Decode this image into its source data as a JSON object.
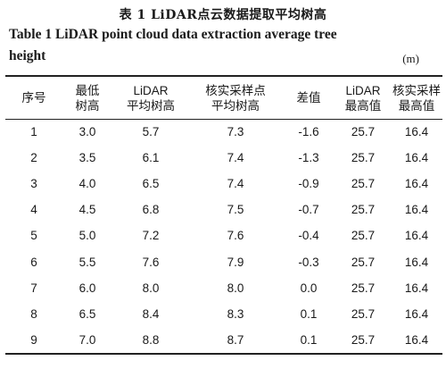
{
  "title_cn": "表 1    LiDAR点云数据提取平均树高",
  "title_en_line1": "Table 1    LiDAR point cloud data extraction average tree",
  "title_en_line2": "height",
  "unit": "(m)",
  "columns": [
    [
      "序号"
    ],
    [
      "最低",
      "树高"
    ],
    [
      "LiDAR",
      "平均树高"
    ],
    [
      "核实采样点",
      "平均树高"
    ],
    [
      "差值"
    ],
    [
      "LiDAR",
      "最高值"
    ],
    [
      "核实采样",
      "最高值"
    ]
  ],
  "rows": [
    [
      "1",
      "3.0",
      "5.7",
      "7.3",
      "-1.6",
      "25.7",
      "16.4"
    ],
    [
      "2",
      "3.5",
      "6.1",
      "7.4",
      "-1.3",
      "25.7",
      "16.4"
    ],
    [
      "3",
      "4.0",
      "6.5",
      "7.4",
      "-0.9",
      "25.7",
      "16.4"
    ],
    [
      "4",
      "4.5",
      "6.8",
      "7.5",
      "-0.7",
      "25.7",
      "16.4"
    ],
    [
      "5",
      "5.0",
      "7.2",
      "7.6",
      "-0.4",
      "25.7",
      "16.4"
    ],
    [
      "6",
      "5.5",
      "7.6",
      "7.9",
      "-0.3",
      "25.7",
      "16.4"
    ],
    [
      "7",
      "6.0",
      "8.0",
      "8.0",
      "0.0",
      "25.7",
      "16.4"
    ],
    [
      "8",
      "6.5",
      "8.4",
      "8.3",
      "0.1",
      "25.7",
      "16.4"
    ],
    [
      "9",
      "7.0",
      "8.8",
      "8.7",
      "0.1",
      "25.7",
      "16.4"
    ]
  ]
}
